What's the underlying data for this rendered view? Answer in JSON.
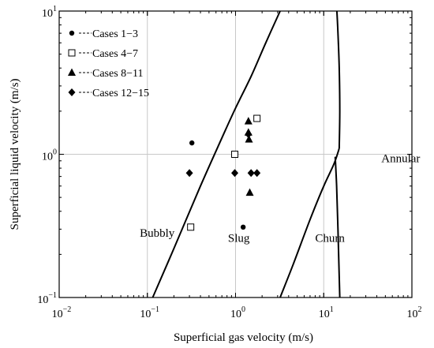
{
  "chart_data": {
    "type": "scatter",
    "xlabel": "Superficial gas velocity (m/s)",
    "ylabel": "Superficial liquid velocity (m/s)",
    "xscale": "log",
    "yscale": "log",
    "xlim": [
      0.01,
      100
    ],
    "ylim": [
      0.1,
      10
    ],
    "grid": true,
    "legend_position": "top-left",
    "xticks": [
      {
        "value": 0.01,
        "base": "10",
        "exp": "−2"
      },
      {
        "value": 0.1,
        "base": "10",
        "exp": "−1"
      },
      {
        "value": 1,
        "base": "10",
        "exp": "0"
      },
      {
        "value": 10,
        "base": "10",
        "exp": "1"
      },
      {
        "value": 100,
        "base": "10",
        "exp": "2"
      }
    ],
    "yticks": [
      {
        "value": 0.1,
        "base": "10",
        "exp": "−1"
      },
      {
        "value": 1,
        "base": "10",
        "exp": "0"
      },
      {
        "value": 10,
        "base": "10",
        "exp": "1"
      }
    ],
    "series": [
      {
        "name": "Cases 1−3",
        "marker": "circle",
        "points": [
          [
            0.32,
            1.2
          ],
          [
            1.0,
            1.0
          ],
          [
            1.22,
            0.31
          ]
        ]
      },
      {
        "name": "Cases 4−7",
        "marker": "square-open",
        "points": [
          [
            0.31,
            0.31
          ],
          [
            0.98,
            1.0
          ],
          [
            1.75,
            1.78
          ]
        ]
      },
      {
        "name": "Cases 8−11",
        "marker": "triangle",
        "points": [
          [
            1.4,
            1.7
          ],
          [
            1.4,
            1.42
          ],
          [
            1.42,
            1.27
          ],
          [
            1.45,
            0.54
          ]
        ]
      },
      {
        "name": "Cases 12−15",
        "marker": "diamond",
        "points": [
          [
            0.3,
            0.74
          ],
          [
            0.98,
            0.74
          ],
          [
            1.5,
            0.74
          ],
          [
            1.75,
            0.74
          ],
          [
            1.4,
            1.38
          ]
        ]
      }
    ],
    "boundaries": [
      {
        "name": "bubbly-slug",
        "points": [
          [
            0.115,
            0.1
          ],
          [
            0.2,
            0.22
          ],
          [
            0.4,
            0.6
          ],
          [
            0.7,
            1.3
          ],
          [
            1.0,
            2.1
          ],
          [
            1.5,
            3.5
          ],
          [
            2.2,
            6.0
          ],
          [
            3.2,
            10.0
          ]
        ]
      },
      {
        "name": "slug-churn",
        "points": [
          [
            3.2,
            0.1
          ],
          [
            4.5,
            0.17
          ],
          [
            7.0,
            0.35
          ],
          [
            10.0,
            0.6
          ],
          [
            13.0,
            0.85
          ],
          [
            15.0,
            1.1
          ]
        ]
      },
      {
        "name": "churn-annular-lower",
        "points": [
          [
            13.5,
            0.96
          ],
          [
            14.0,
            0.6
          ],
          [
            14.5,
            0.3
          ],
          [
            15.2,
            0.1
          ]
        ]
      },
      {
        "name": "churn-annular-upper",
        "points": [
          [
            15.0,
            1.1
          ],
          [
            15.2,
            2.0
          ],
          [
            15.0,
            4.0
          ],
          [
            14.5,
            7.0
          ],
          [
            14.1,
            10.0
          ]
        ]
      }
    ],
    "annotations": [
      {
        "text": "Bubbly",
        "x": 0.082,
        "y": 0.265
      },
      {
        "text": "Slug",
        "x": 0.82,
        "y": 0.245
      },
      {
        "text": "Churn",
        "x": 8.0,
        "y": 0.245
      },
      {
        "text": "Annular",
        "x": 45,
        "y": 0.88
      }
    ]
  }
}
